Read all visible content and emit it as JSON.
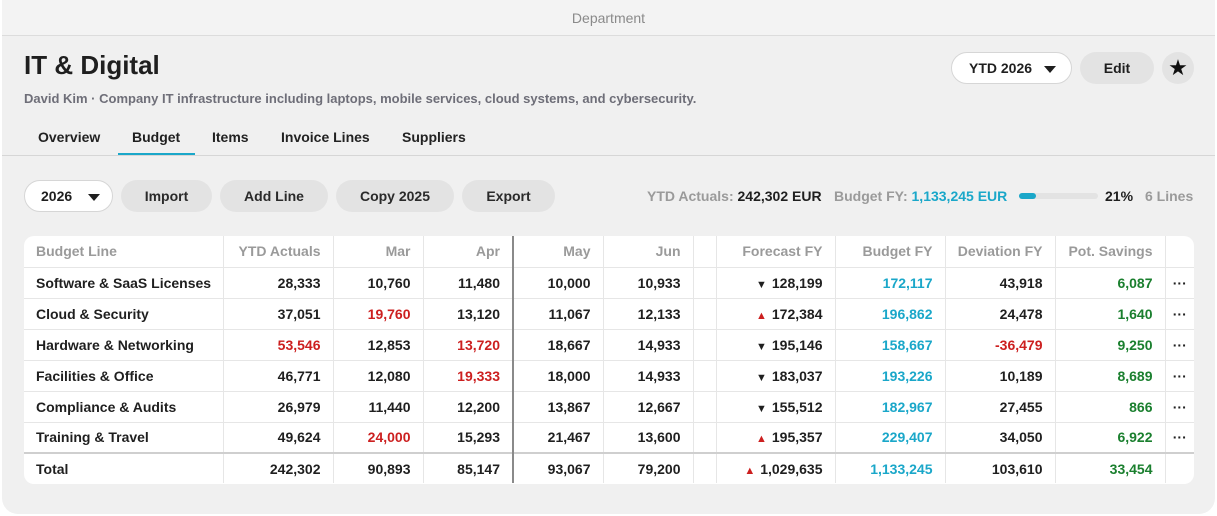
{
  "window": {
    "title": "Department"
  },
  "header": {
    "title": "IT & Digital",
    "subtitle": "David Kim · Company IT infrastructure including laptops, mobile services, cloud systems, and cybersecurity.",
    "period_label": "YTD 2026",
    "edit_label": "Edit",
    "star_icon": "★"
  },
  "tabs": [
    {
      "label": "Overview"
    },
    {
      "label": "Budget",
      "active": true
    },
    {
      "label": "Items"
    },
    {
      "label": "Invoice Lines"
    },
    {
      "label": "Suppliers"
    }
  ],
  "toolbar": {
    "year": "2026",
    "import_label": "Import",
    "add_line_label": "Add Line",
    "copy_label": "Copy 2025",
    "export_label": "Export"
  },
  "summary": {
    "ytd_label": "YTD Actuals:",
    "ytd_value": "242,302 EUR",
    "budget_label": "Budget FY:",
    "budget_value": "1,133,245 EUR",
    "progress": 0.21,
    "percent": "21%",
    "lines": "6 Lines"
  },
  "colors": {
    "accent": "#1aa7c9",
    "negative": "#cc1f1f",
    "positive": "#1a7f2e"
  },
  "table": {
    "columns": [
      "Budget Line",
      "YTD Actuals",
      "Mar",
      "Apr",
      "May",
      "Jun",
      "",
      "Forecast FY",
      "Budget FY",
      "Deviation FY",
      "Pot. Savings",
      ""
    ],
    "rows": [
      {
        "name": "Software & SaaS Licenses",
        "ytd": "28,333",
        "mar": "10,760",
        "apr": "11,480",
        "may": "10,000",
        "jun": "10,933",
        "trend": "▼",
        "forecast": "128,199",
        "budget": "172,117",
        "deviation": "43,918",
        "savings": "6,087",
        "more": "···"
      },
      {
        "name": "Cloud & Security",
        "ytd": "37,051",
        "mar": "19,760",
        "apr": "13,120",
        "may": "11,067",
        "jun": "12,133",
        "trend": "▲",
        "forecast": "172,384",
        "budget": "196,862",
        "deviation": "24,478",
        "savings": "1,640",
        "more": "···"
      },
      {
        "name": "Hardware & Networking",
        "ytd": "53,546",
        "mar": "12,853",
        "apr": "13,720",
        "may": "18,667",
        "jun": "14,933",
        "trend": "▼",
        "forecast": "195,146",
        "budget": "158,667",
        "deviation": "-36,479",
        "savings": "9,250",
        "more": "···"
      },
      {
        "name": "Facilities & Office",
        "ytd": "46,771",
        "mar": "12,080",
        "apr": "19,333",
        "may": "18,000",
        "jun": "14,933",
        "trend": "▼",
        "forecast": "183,037",
        "budget": "193,226",
        "deviation": "10,189",
        "savings": "8,689",
        "more": "···"
      },
      {
        "name": "Compliance & Audits",
        "ytd": "26,979",
        "mar": "11,440",
        "apr": "12,200",
        "may": "13,867",
        "jun": "12,667",
        "trend": "▼",
        "forecast": "155,512",
        "budget": "182,967",
        "deviation": "27,455",
        "savings": "866",
        "more": "···"
      },
      {
        "name": "Training & Travel",
        "ytd": "49,624",
        "mar": "24,000",
        "apr": "15,293",
        "may": "21,467",
        "jun": "13,600",
        "trend": "▲",
        "forecast": "195,357",
        "budget": "229,407",
        "deviation": "34,050",
        "savings": "6,922",
        "more": "···"
      }
    ],
    "total": {
      "name": "Total",
      "ytd": "242,302",
      "mar": "90,893",
      "apr": "85,147",
      "may": "93,067",
      "jun": "79,200",
      "trend": "▲",
      "forecast": "1,029,635",
      "budget": "1,133,245",
      "deviation": "103,610",
      "savings": "33,454"
    }
  }
}
